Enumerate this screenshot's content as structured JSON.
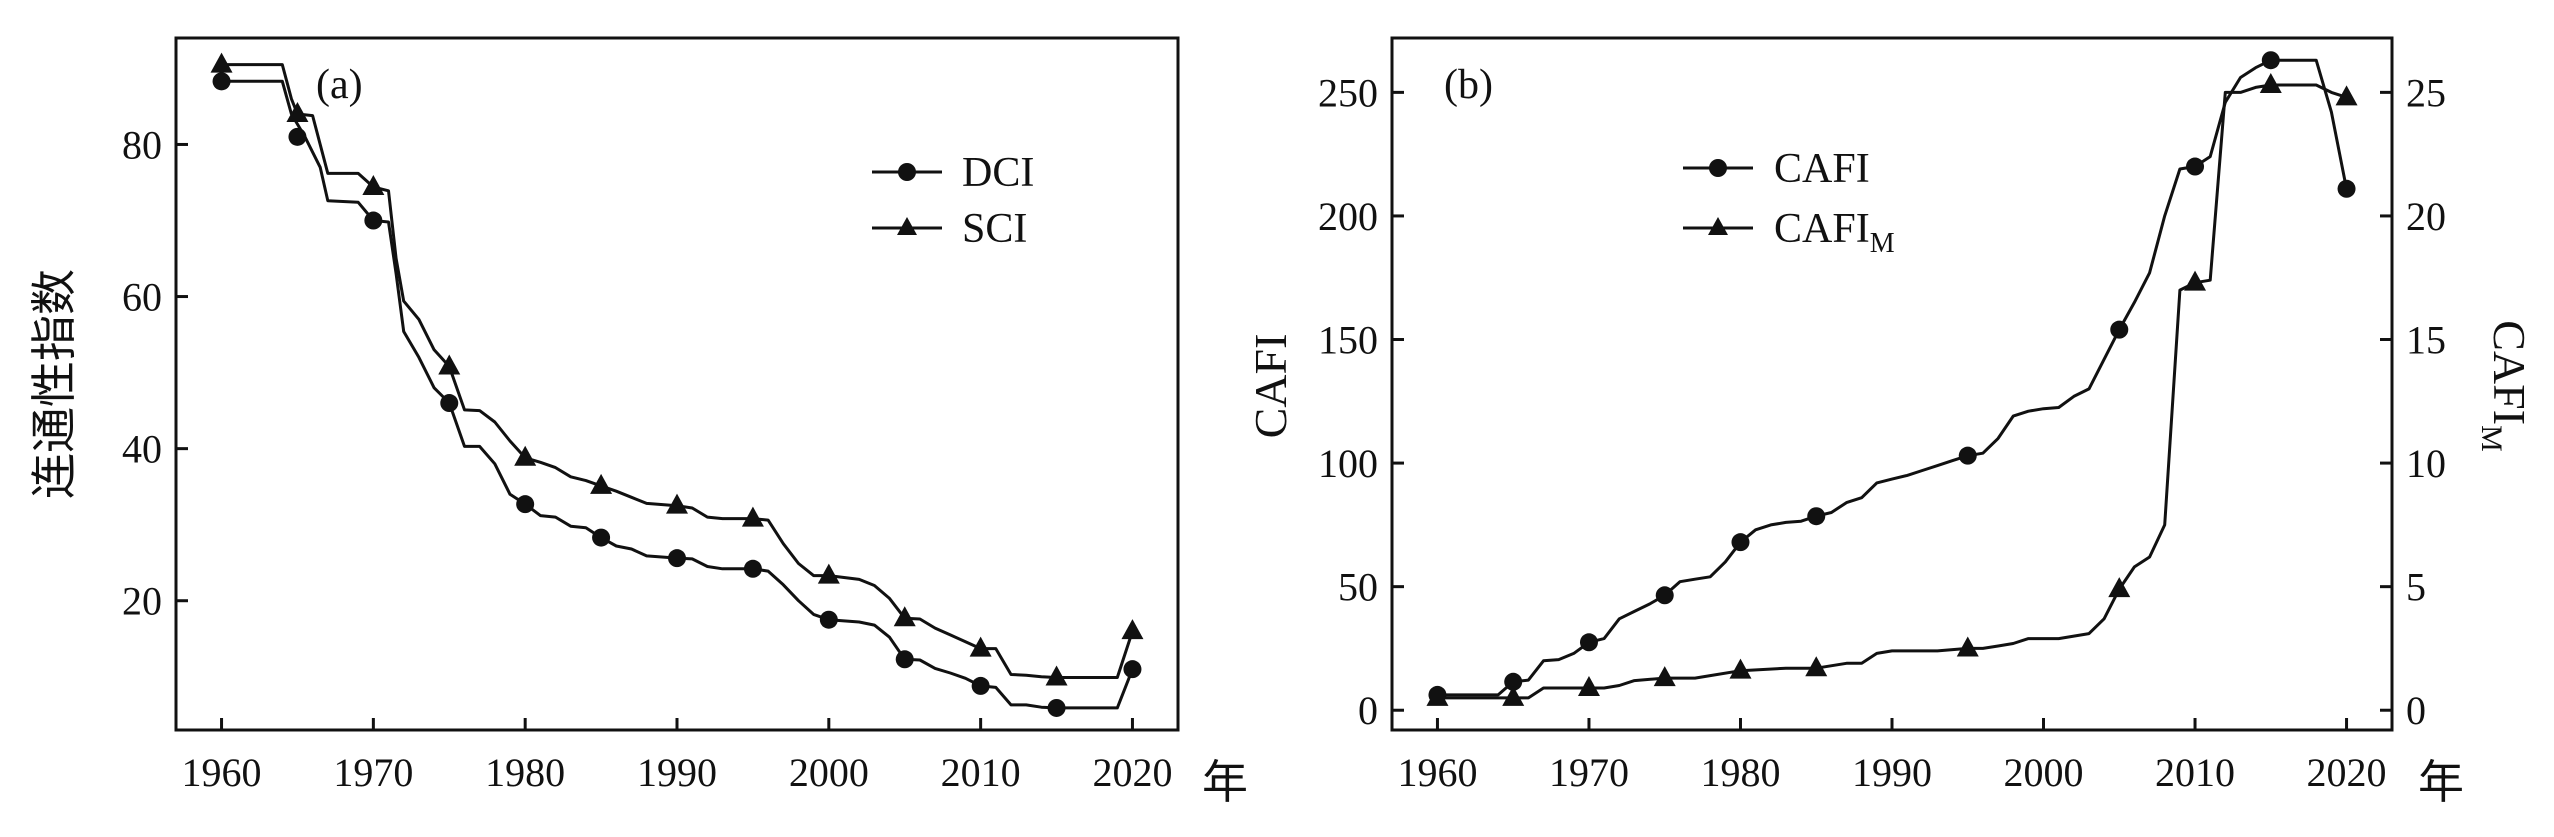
{
  "chart_data": [
    {
      "type": "line",
      "panel_label": "(a)",
      "ylabel": "连通性指数",
      "x_unit_label": "年",
      "xlim": [
        1957,
        2023
      ],
      "ylim": [
        3,
        94
      ],
      "x_ticks": [
        1960,
        1970,
        1980,
        1990,
        2000,
        2010,
        2020
      ],
      "y_ticks": [
        20,
        40,
        60,
        80
      ],
      "legend_position": "top-right",
      "grid": false,
      "series": [
        {
          "name": "DCI",
          "marker": "circle",
          "line": [
            [
              1960,
              88.3
            ],
            [
              1964,
              88.3
            ],
            [
              1964.6,
              84
            ],
            [
              1965.5,
              81
            ],
            [
              1966.5,
              77
            ],
            [
              1967,
              72.6
            ],
            [
              1969,
              72.4
            ],
            [
              1970,
              70.0
            ],
            [
              1971,
              69.8
            ],
            [
              1971.5,
              63
            ],
            [
              1972,
              55.4
            ],
            [
              1973,
              52
            ],
            [
              1974,
              48
            ],
            [
              1975,
              46.0
            ],
            [
              1976,
              40.3
            ],
            [
              1977,
              40.3
            ],
            [
              1978,
              38
            ],
            [
              1979,
              34
            ],
            [
              1980,
              32.7
            ],
            [
              1981,
              31.2
            ],
            [
              1982,
              31
            ],
            [
              1983,
              29.8
            ],
            [
              1984,
              29.6
            ],
            [
              1985,
              28.3
            ],
            [
              1986,
              27.2
            ],
            [
              1987,
              26.8
            ],
            [
              1988,
              25.9
            ],
            [
              1990,
              25.6
            ],
            [
              1991,
              25.5
            ],
            [
              1992,
              24.5
            ],
            [
              1993,
              24.2
            ],
            [
              1995,
              24.2
            ],
            [
              1996,
              23.9
            ],
            [
              1997,
              22.1
            ],
            [
              1998,
              20
            ],
            [
              1999,
              18.2
            ],
            [
              2000,
              17.5
            ],
            [
              2002,
              17.2
            ],
            [
              2003,
              16.8
            ],
            [
              2004,
              15.2
            ],
            [
              2005,
              12.3
            ],
            [
              2006,
              12.2
            ],
            [
              2007,
              11.1
            ],
            [
              2008,
              10.5
            ],
            [
              2009,
              9.8
            ],
            [
              2010,
              8.8
            ],
            [
              2011,
              8.6
            ],
            [
              2012,
              6.3
            ],
            [
              2013,
              6.3
            ],
            [
              2014,
              6
            ],
            [
              2015,
              5.9
            ],
            [
              2019,
              5.9
            ],
            [
              2020,
              11.0
            ]
          ],
          "points": [
            [
              1960,
              88.3
            ],
            [
              1965,
              81.0
            ],
            [
              1970,
              70.0
            ],
            [
              1975,
              46.0
            ],
            [
              1980,
              32.7
            ],
            [
              1985,
              28.3
            ],
            [
              1990,
              25.6
            ],
            [
              1995,
              24.2
            ],
            [
              2000,
              17.5
            ],
            [
              2005,
              12.3
            ],
            [
              2010,
              8.8
            ],
            [
              2015,
              5.9
            ],
            [
              2020,
              11.0
            ]
          ]
        },
        {
          "name": "SCI",
          "marker": "triangle",
          "line": [
            [
              1960,
              90.5
            ],
            [
              1964,
              90.5
            ],
            [
              1964.6,
              86
            ],
            [
              1965,
              84.0
            ],
            [
              1966,
              83.8
            ],
            [
              1967,
              76.2
            ],
            [
              1969,
              76.2
            ],
            [
              1970,
              74.4
            ],
            [
              1971,
              73.9
            ],
            [
              1971.5,
              65
            ],
            [
              1972,
              59.4
            ],
            [
              1973,
              57
            ],
            [
              1974,
              53
            ],
            [
              1975,
              50.8
            ],
            [
              1976,
              45.1
            ],
            [
              1977,
              45
            ],
            [
              1978,
              43.5
            ],
            [
              1979,
              41
            ],
            [
              1980,
              38.8
            ],
            [
              1981,
              38.2
            ],
            [
              1982,
              37.5
            ],
            [
              1983,
              36.3
            ],
            [
              1984,
              35.8
            ],
            [
              1985,
              35.1
            ],
            [
              1986,
              34.4
            ],
            [
              1987,
              33.6
            ],
            [
              1988,
              32.8
            ],
            [
              1990,
              32.5
            ],
            [
              1991,
              32.2
            ],
            [
              1992,
              31
            ],
            [
              1993,
              30.8
            ],
            [
              1995,
              30.8
            ],
            [
              1996,
              30.6
            ],
            [
              1997,
              27.5
            ],
            [
              1998,
              24.9
            ],
            [
              1999,
              23.3
            ],
            [
              2000,
              23.3
            ],
            [
              2002,
              22.8
            ],
            [
              2003,
              22
            ],
            [
              2004,
              20.3
            ],
            [
              2005,
              17.7
            ],
            [
              2006,
              17.6
            ],
            [
              2007,
              16.4
            ],
            [
              2008,
              15.5
            ],
            [
              2009,
              14.6
            ],
            [
              2010,
              13.7
            ],
            [
              2011,
              13.7
            ],
            [
              2012,
              10.3
            ],
            [
              2013,
              10.2
            ],
            [
              2014,
              10
            ],
            [
              2015,
              9.9
            ],
            [
              2019,
              9.9
            ],
            [
              2020,
              16.0
            ]
          ],
          "points": [
            [
              1960,
              90.5
            ],
            [
              1965,
              84.0
            ],
            [
              1970,
              74.4
            ],
            [
              1975,
              50.8
            ],
            [
              1980,
              38.8
            ],
            [
              1985,
              35.1
            ],
            [
              1990,
              32.5
            ],
            [
              1995,
              30.8
            ],
            [
              2000,
              23.3
            ],
            [
              2005,
              17.7
            ],
            [
              2010,
              13.7
            ],
            [
              2015,
              9.9
            ],
            [
              2020,
              16.0
            ]
          ]
        }
      ]
    },
    {
      "type": "line",
      "panel_label": "(b)",
      "ylabel": "CAFI",
      "ylabel_right": "CAFI",
      "ylabel_right_subscript": "M",
      "x_unit_label": "年",
      "xlim": [
        1957,
        2023
      ],
      "ylim": [
        -8,
        272
      ],
      "y2lim": [
        -0.8,
        27.2
      ],
      "x_ticks": [
        1960,
        1970,
        1980,
        1990,
        2000,
        2010,
        2020
      ],
      "y_ticks": [
        0,
        50,
        100,
        150,
        200,
        250
      ],
      "y2_ticks": [
        0,
        5,
        10,
        15,
        20,
        25
      ],
      "legend_position": "top-center",
      "grid": false,
      "series": [
        {
          "name": "CAFI",
          "marker": "circle",
          "axis": "left",
          "line": [
            [
              1960,
              6.2
            ],
            [
              1964,
              6.2
            ],
            [
              1965,
              11.5
            ],
            [
              1966,
              12.2
            ],
            [
              1967,
              20
            ],
            [
              1968,
              20.5
            ],
            [
              1969,
              23
            ],
            [
              1970,
              27.5
            ],
            [
              1971,
              29
            ],
            [
              1972,
              37
            ],
            [
              1973,
              40
            ],
            [
              1974,
              43
            ],
            [
              1975,
              46.5
            ],
            [
              1976,
              52
            ],
            [
              1977,
              53
            ],
            [
              1978,
              54
            ],
            [
              1979,
              60
            ],
            [
              1980,
              68
            ],
            [
              1981,
              73
            ],
            [
              1982,
              75
            ],
            [
              1983,
              76
            ],
            [
              1984,
              76.5
            ],
            [
              1985,
              78.5
            ],
            [
              1986,
              80
            ],
            [
              1987,
              84
            ],
            [
              1988,
              86
            ],
            [
              1989,
              92
            ],
            [
              1990,
              93.5
            ],
            [
              1991,
              95
            ],
            [
              1992,
              97
            ],
            [
              1993,
              99
            ],
            [
              1994,
              101
            ],
            [
              1995,
              103
            ],
            [
              1996,
              104
            ],
            [
              1997,
              110
            ],
            [
              1998,
              119
            ],
            [
              1999,
              121
            ],
            [
              2000,
              122
            ],
            [
              2001,
              122.5
            ],
            [
              2002,
              127
            ],
            [
              2003,
              130
            ],
            [
              2004,
              142
            ],
            [
              2005,
              154
            ],
            [
              2006,
              165
            ],
            [
              2007,
              177
            ],
            [
              2008,
              200
            ],
            [
              2009,
              219
            ],
            [
              2010,
              220
            ],
            [
              2011,
              224
            ],
            [
              2012,
              246
            ],
            [
              2013,
              256
            ],
            [
              2014,
              260
            ],
            [
              2015,
              263
            ],
            [
              2018,
              263
            ],
            [
              2019,
              242
            ],
            [
              2020,
              211
            ]
          ],
          "points": [
            [
              1960,
              6.2
            ],
            [
              1965,
              11.5
            ],
            [
              1970,
              27.5
            ],
            [
              1975,
              46.5
            ],
            [
              1980,
              68
            ],
            [
              1985,
              78.5
            ],
            [
              1995,
              103
            ],
            [
              2005,
              154
            ],
            [
              2010,
              220
            ],
            [
              2015,
              263
            ],
            [
              2020,
              211
            ]
          ]
        },
        {
          "name": "CAFI",
          "name_subscript": "M",
          "marker": "triangle",
          "axis": "right",
          "line": [
            [
              1960,
              0.5
            ],
            [
              1964,
              0.5
            ],
            [
              1965,
              0.5
            ],
            [
              1966,
              0.5
            ],
            [
              1967,
              0.9
            ],
            [
              1969,
              0.9
            ],
            [
              1970,
              0.9
            ],
            [
              1971,
              0.9
            ],
            [
              1972,
              1.0
            ],
            [
              1973,
              1.2
            ],
            [
              1975,
              1.3
            ],
            [
              1977,
              1.3
            ],
            [
              1978,
              1.4
            ],
            [
              1980,
              1.6
            ],
            [
              1983,
              1.7
            ],
            [
              1985,
              1.7
            ],
            [
              1987,
              1.9
            ],
            [
              1988,
              1.9
            ],
            [
              1989,
              2.3
            ],
            [
              1990,
              2.4
            ],
            [
              1992,
              2.4
            ],
            [
              1993,
              2.4
            ],
            [
              1995,
              2.5
            ],
            [
              1996,
              2.5
            ],
            [
              1997,
              2.6
            ],
            [
              1998,
              2.7
            ],
            [
              1999,
              2.9
            ],
            [
              2000,
              2.9
            ],
            [
              2001,
              2.9
            ],
            [
              2002,
              3.0
            ],
            [
              2003,
              3.1
            ],
            [
              2004,
              3.7
            ],
            [
              2005,
              4.9
            ],
            [
              2006,
              5.8
            ],
            [
              2007,
              6.2
            ],
            [
              2008,
              7.5
            ],
            [
              2009,
              17.0
            ],
            [
              2010,
              17.3
            ],
            [
              2011,
              17.4
            ],
            [
              2012,
              25.0
            ],
            [
              2013,
              25.0
            ],
            [
              2014,
              25.2
            ],
            [
              2015,
              25.3
            ],
            [
              2018,
              25.3
            ],
            [
              2019,
              25.0
            ],
            [
              2020,
              24.8
            ]
          ],
          "points": [
            [
              1960,
              0.5
            ],
            [
              1965,
              0.5
            ],
            [
              1970,
              0.9
            ],
            [
              1975,
              1.3
            ],
            [
              1980,
              1.6
            ],
            [
              1985,
              1.7
            ],
            [
              1995,
              2.5
            ],
            [
              2005,
              4.9
            ],
            [
              2010,
              17.3
            ],
            [
              2015,
              25.3
            ],
            [
              2020,
              24.8
            ]
          ]
        }
      ]
    }
  ]
}
